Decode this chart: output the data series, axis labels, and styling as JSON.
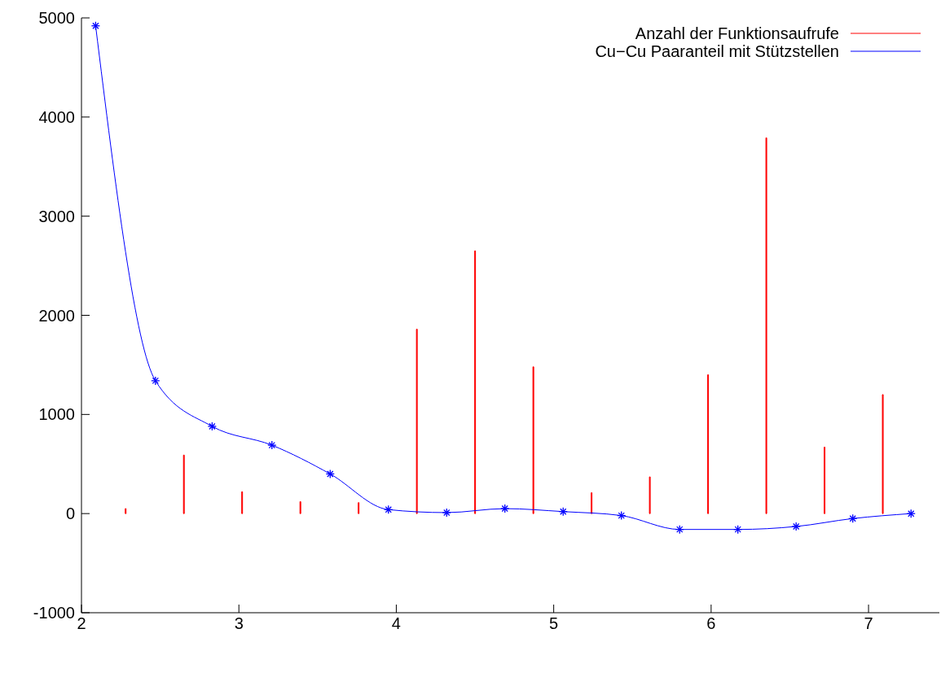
{
  "chart_data": {
    "type": "line",
    "xlim": [
      2,
      7.45
    ],
    "xticks": [
      2,
      3,
      4,
      5,
      6,
      7
    ],
    "ylim": [
      -1000,
      5000
    ],
    "yticks": [
      -1000,
      0,
      1000,
      2000,
      3000,
      4000,
      5000
    ],
    "legend": "top right",
    "series": [
      {
        "name": "Anzahl der Funktionsaufrufe",
        "type": "bar",
        "color": "#ff0000",
        "x": [
          2.28,
          2.65,
          3.02,
          3.39,
          3.76,
          4.13,
          4.5,
          4.87,
          5.24,
          5.61,
          5.98,
          6.35,
          6.72,
          7.09
        ],
        "values": [
          50,
          590,
          220,
          120,
          110,
          1860,
          2650,
          1480,
          210,
          370,
          1400,
          3790,
          670,
          1200
        ]
      },
      {
        "name": "Cu−Cu Paaranteil mit Stützstellen",
        "color": "#0000ff",
        "marker": "cross",
        "x": [
          2.09,
          2.47,
          2.83,
          3.21,
          3.58,
          3.95,
          4.32,
          4.69,
          5.06,
          5.43,
          5.8,
          6.17,
          6.54,
          6.9,
          7.27
        ],
        "values": [
          4920,
          1340,
          880,
          690,
          400,
          40,
          10,
          50,
          20,
          -20,
          -160,
          -160,
          -130,
          -50,
          0
        ]
      }
    ]
  }
}
